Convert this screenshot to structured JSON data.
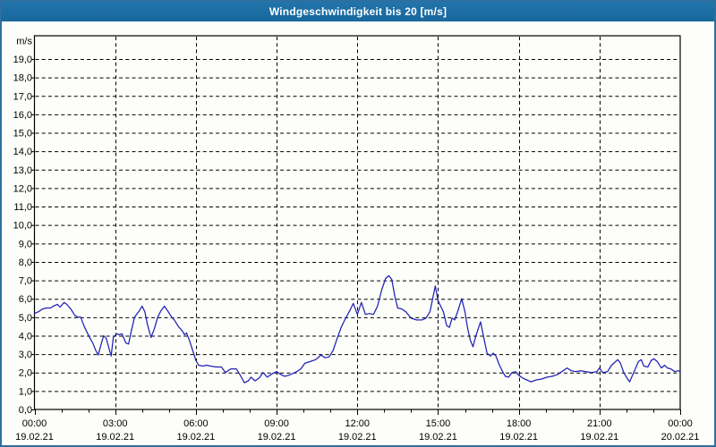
{
  "window": {
    "title": "Windgeschwindigkeit bis 20 [m/s]"
  },
  "colors": {
    "title_bar": "#1c6da3",
    "frame": "#2e6f9f",
    "background": "#fdfdfa",
    "plot_background": "#fdfdfa",
    "grid": "#000000",
    "axis": "#000000",
    "line": "#2121b5",
    "title_text": "#ffffff"
  },
  "chart_data": {
    "type": "line",
    "title": "Windgeschwindigkeit bis 20 [m/s]",
    "ylabel": "m/s",
    "xlabel": "",
    "grid": true,
    "legend": "none",
    "ylim": [
      0,
      20
    ],
    "x_range_hours": [
      0,
      24
    ],
    "y_axis": {
      "unit_label": "m/s",
      "tick_values": [
        0,
        1,
        2,
        3,
        4,
        5,
        6,
        7,
        8,
        9,
        10,
        11,
        12,
        13,
        14,
        15,
        16,
        17,
        18,
        19
      ],
      "tick_labels": [
        "0,0",
        "1,0",
        "2,0",
        "3,0",
        "4,0",
        "5,0",
        "6,0",
        "7,0",
        "8,0",
        "9,0",
        "10,0",
        "11,0",
        "12,0",
        "13,0",
        "14,0",
        "15,0",
        "16,0",
        "17,0",
        "18,0",
        "19,0"
      ]
    },
    "x_axis": {
      "minor_tick_every_hours": 1,
      "major_ticks": [
        {
          "hour": 0,
          "time": "00:00",
          "date": "19.02.21"
        },
        {
          "hour": 3,
          "time": "03:00",
          "date": "19.02.21"
        },
        {
          "hour": 6,
          "time": "06:00",
          "date": "19.02.21"
        },
        {
          "hour": 9,
          "time": "09:00",
          "date": "19.02.21"
        },
        {
          "hour": 12,
          "time": "12:00",
          "date": "19.02.21"
        },
        {
          "hour": 15,
          "time": "15:00",
          "date": "19.02.21"
        },
        {
          "hour": 18,
          "time": "18:00",
          "date": "19.02.21"
        },
        {
          "hour": 21,
          "time": "21:00",
          "date": "19.02.21"
        },
        {
          "hour": 24,
          "time": "00:00",
          "date": "20.02.21"
        }
      ]
    },
    "series": [
      {
        "color": "#2121b5",
        "points": [
          [
            0,
            5.2
          ],
          [
            0.15,
            5.3
          ],
          [
            0.3,
            5.45
          ],
          [
            0.45,
            5.5
          ],
          [
            0.6,
            5.5
          ],
          [
            0.7,
            5.6
          ],
          [
            0.85,
            5.7
          ],
          [
            0.95,
            5.55
          ],
          [
            1.1,
            5.8
          ],
          [
            1.2,
            5.7
          ],
          [
            1.35,
            5.45
          ],
          [
            1.5,
            5.1
          ],
          [
            1.62,
            5.0
          ],
          [
            1.72,
            5.0
          ],
          [
            1.85,
            4.5
          ],
          [
            1.95,
            4.2
          ],
          [
            2.05,
            3.9
          ],
          [
            2.17,
            3.6
          ],
          [
            2.28,
            3.2
          ],
          [
            2.37,
            2.95
          ],
          [
            2.47,
            3.5
          ],
          [
            2.57,
            4.0
          ],
          [
            2.67,
            3.85
          ],
          [
            2.77,
            3.3
          ],
          [
            2.85,
            2.9
          ],
          [
            2.93,
            3.9
          ],
          [
            3.05,
            4.1
          ],
          [
            3.15,
            4.05
          ],
          [
            3.25,
            4.1
          ],
          [
            3.4,
            3.6
          ],
          [
            3.5,
            3.55
          ],
          [
            3.6,
            4.25
          ],
          [
            3.72,
            5.0
          ],
          [
            3.82,
            5.2
          ],
          [
            3.9,
            5.35
          ],
          [
            4.0,
            5.6
          ],
          [
            4.1,
            5.3
          ],
          [
            4.2,
            4.6
          ],
          [
            4.33,
            3.9
          ],
          [
            4.45,
            4.35
          ],
          [
            4.58,
            5.0
          ],
          [
            4.7,
            5.35
          ],
          [
            4.83,
            5.6
          ],
          [
            4.95,
            5.35
          ],
          [
            5.1,
            5.0
          ],
          [
            5.2,
            4.85
          ],
          [
            5.35,
            4.5
          ],
          [
            5.5,
            4.25
          ],
          [
            5.58,
            4.05
          ],
          [
            5.65,
            4.15
          ],
          [
            5.77,
            3.7
          ],
          [
            5.88,
            3.2
          ],
          [
            6.0,
            2.65
          ],
          [
            6.1,
            2.4
          ],
          [
            6.25,
            2.35
          ],
          [
            6.4,
            2.4
          ],
          [
            6.55,
            2.35
          ],
          [
            6.75,
            2.3
          ],
          [
            6.95,
            2.3
          ],
          [
            7.1,
            2.0
          ],
          [
            7.3,
            2.2
          ],
          [
            7.5,
            2.2
          ],
          [
            7.65,
            1.85
          ],
          [
            7.8,
            1.45
          ],
          [
            7.95,
            1.55
          ],
          [
            8.05,
            1.75
          ],
          [
            8.2,
            1.55
          ],
          [
            8.35,
            1.7
          ],
          [
            8.5,
            2.0
          ],
          [
            8.65,
            1.75
          ],
          [
            8.85,
            1.95
          ],
          [
            9.0,
            2.05
          ],
          [
            9.15,
            1.9
          ],
          [
            9.3,
            1.8
          ],
          [
            9.45,
            1.85
          ],
          [
            9.6,
            1.95
          ],
          [
            9.75,
            2.05
          ],
          [
            9.9,
            2.2
          ],
          [
            10.05,
            2.5
          ],
          [
            10.25,
            2.6
          ],
          [
            10.45,
            2.7
          ],
          [
            10.65,
            2.95
          ],
          [
            10.8,
            2.8
          ],
          [
            10.95,
            2.85
          ],
          [
            11.1,
            3.2
          ],
          [
            11.25,
            3.85
          ],
          [
            11.4,
            4.45
          ],
          [
            11.55,
            4.9
          ],
          [
            11.7,
            5.3
          ],
          [
            11.85,
            5.75
          ],
          [
            12.0,
            5.15
          ],
          [
            12.15,
            5.8
          ],
          [
            12.3,
            5.15
          ],
          [
            12.45,
            5.2
          ],
          [
            12.6,
            5.15
          ],
          [
            12.75,
            5.6
          ],
          [
            12.9,
            6.45
          ],
          [
            13.05,
            7.1
          ],
          [
            13.17,
            7.25
          ],
          [
            13.28,
            7.05
          ],
          [
            13.4,
            6.1
          ],
          [
            13.5,
            5.5
          ],
          [
            13.65,
            5.45
          ],
          [
            13.8,
            5.3
          ],
          [
            14.0,
            4.95
          ],
          [
            14.2,
            4.85
          ],
          [
            14.4,
            4.85
          ],
          [
            14.55,
            4.95
          ],
          [
            14.7,
            5.3
          ],
          [
            14.8,
            6.0
          ],
          [
            14.9,
            6.7
          ],
          [
            15.0,
            5.9
          ],
          [
            15.1,
            5.6
          ],
          [
            15.2,
            5.3
          ],
          [
            15.32,
            4.55
          ],
          [
            15.42,
            4.45
          ],
          [
            15.52,
            4.95
          ],
          [
            15.62,
            4.85
          ],
          [
            15.75,
            5.4
          ],
          [
            15.88,
            6.0
          ],
          [
            16.0,
            5.3
          ],
          [
            16.1,
            4.4
          ],
          [
            16.2,
            3.75
          ],
          [
            16.3,
            3.4
          ],
          [
            16.4,
            3.95
          ],
          [
            16.5,
            4.4
          ],
          [
            16.58,
            4.75
          ],
          [
            16.7,
            3.9
          ],
          [
            16.82,
            3.05
          ],
          [
            16.95,
            2.9
          ],
          [
            17.05,
            3.05
          ],
          [
            17.15,
            2.9
          ],
          [
            17.28,
            2.4
          ],
          [
            17.4,
            2.05
          ],
          [
            17.5,
            1.8
          ],
          [
            17.62,
            1.75
          ],
          [
            17.75,
            2.0
          ],
          [
            17.88,
            2.05
          ],
          [
            18.0,
            1.85
          ],
          [
            18.15,
            1.7
          ],
          [
            18.3,
            1.6
          ],
          [
            18.45,
            1.5
          ],
          [
            18.65,
            1.6
          ],
          [
            18.85,
            1.65
          ],
          [
            19.05,
            1.75
          ],
          [
            19.25,
            1.8
          ],
          [
            19.45,
            1.9
          ],
          [
            19.6,
            2.05
          ],
          [
            19.8,
            2.25
          ],
          [
            19.95,
            2.1
          ],
          [
            20.1,
            2.05
          ],
          [
            20.3,
            2.1
          ],
          [
            20.5,
            2.05
          ],
          [
            20.7,
            2.0
          ],
          [
            20.9,
            2.05
          ],
          [
            21.0,
            2.25
          ],
          [
            21.12,
            2.0
          ],
          [
            21.3,
            2.05
          ],
          [
            21.45,
            2.4
          ],
          [
            21.6,
            2.6
          ],
          [
            21.68,
            2.7
          ],
          [
            21.78,
            2.5
          ],
          [
            21.9,
            2.0
          ],
          [
            22.02,
            1.7
          ],
          [
            22.12,
            1.5
          ],
          [
            22.3,
            2.1
          ],
          [
            22.45,
            2.6
          ],
          [
            22.55,
            2.7
          ],
          [
            22.65,
            2.35
          ],
          [
            22.8,
            2.3
          ],
          [
            22.92,
            2.65
          ],
          [
            23.02,
            2.75
          ],
          [
            23.15,
            2.6
          ],
          [
            23.3,
            2.25
          ],
          [
            23.42,
            2.4
          ],
          [
            23.52,
            2.25
          ],
          [
            23.65,
            2.2
          ],
          [
            23.8,
            2.05
          ],
          [
            23.92,
            2.1
          ],
          [
            24.0,
            2.05
          ]
        ]
      }
    ]
  }
}
